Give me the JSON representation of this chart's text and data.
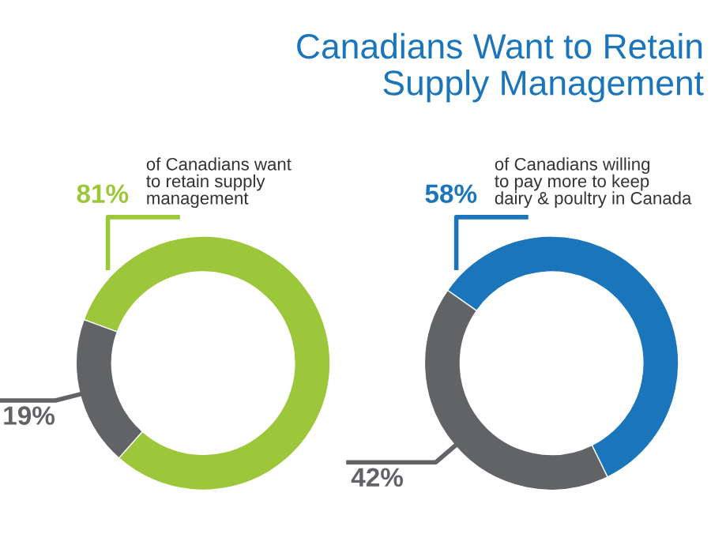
{
  "chart_data": [
    {
      "type": "donut",
      "categories": [
        null,
        null
      ],
      "values": [
        81,
        19
      ],
      "value_labels": [
        "81%",
        "19%"
      ],
      "colors": [
        "#9dc73a",
        "#626366"
      ],
      "annotations": [
        "of Canadians want\nto retain supply\nmanagement"
      ]
    },
    {
      "type": "donut",
      "title": "Canadians Want to Retain\nSupply Management",
      "categories": [
        null,
        null
      ],
      "values": [
        58,
        42
      ],
      "value_labels": [
        "58%",
        "42%"
      ],
      "colors": [
        "#1b75bb",
        "#626366"
      ],
      "annotations": [
        "of Canadians willing\nto pay more to keep\ndairy & poultry in Canada"
      ]
    }
  ]
}
